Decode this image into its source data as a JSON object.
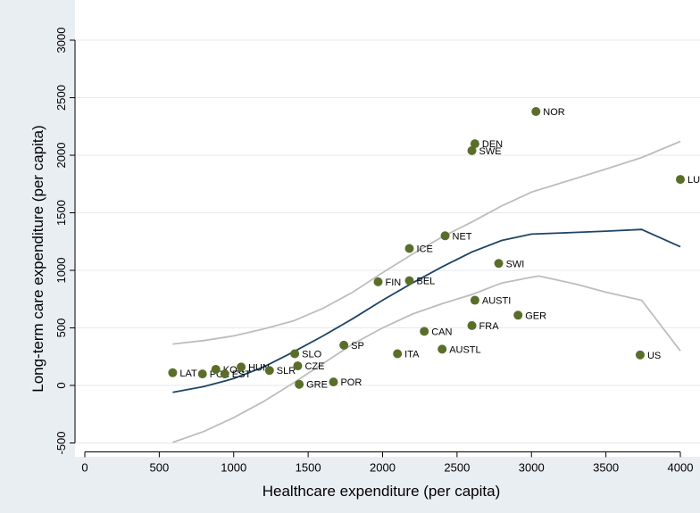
{
  "chart_data": {
    "type": "scatter",
    "title": "",
    "xlabel": "Healthcare expenditure (per capita)",
    "ylabel": "Long-term care expenditure (per capita)",
    "xlim": [
      0,
      4000
    ],
    "ylim": [
      -500,
      3000
    ],
    "xticks": [
      0,
      500,
      1000,
      1500,
      2000,
      2500,
      3000,
      3500,
      4000
    ],
    "yticks": [
      -500,
      0,
      500,
      1000,
      1500,
      2000,
      2500,
      3000
    ],
    "grid": "horizontal",
    "legend": "none",
    "colors": {
      "background": "#e9eef3",
      "plot_background": "#ffffff",
      "gridline": "#e3eaef",
      "point": "#5a6e2a",
      "fit_line": "#1e4466",
      "ci_line": "#bdbdbd"
    },
    "points": [
      {
        "label": "LAT",
        "x": 590,
        "y": 110
      },
      {
        "label": "POL",
        "x": 790,
        "y": 100
      },
      {
        "label": "KOR",
        "x": 880,
        "y": 140
      },
      {
        "label": "EST",
        "x": 940,
        "y": 100
      },
      {
        "label": "HUN",
        "x": 1050,
        "y": 160
      },
      {
        "label": "SLR",
        "x": 1240,
        "y": 130
      },
      {
        "label": "SLO",
        "x": 1410,
        "y": 275
      },
      {
        "label": "CZE",
        "x": 1430,
        "y": 170
      },
      {
        "label": "GRE",
        "x": 1440,
        "y": 10
      },
      {
        "label": "POR",
        "x": 1670,
        "y": 30
      },
      {
        "label": "SP",
        "x": 1740,
        "y": 350
      },
      {
        "label": "FIN",
        "x": 1970,
        "y": 900
      },
      {
        "label": "ITA",
        "x": 2100,
        "y": 275
      },
      {
        "label": "ICE",
        "x": 2180,
        "y": 1190
      },
      {
        "label": "BEL",
        "x": 2180,
        "y": 910
      },
      {
        "label": "CAN",
        "x": 2280,
        "y": 470
      },
      {
        "label": "AUSTL",
        "x": 2400,
        "y": 315
      },
      {
        "label": "NET",
        "x": 2420,
        "y": 1300
      },
      {
        "label": "SWE",
        "x": 2600,
        "y": 2040
      },
      {
        "label": "FRA",
        "x": 2600,
        "y": 520
      },
      {
        "label": "DEN",
        "x": 2620,
        "y": 2100
      },
      {
        "label": "AUSTI",
        "x": 2620,
        "y": 740
      },
      {
        "label": "SWI",
        "x": 2780,
        "y": 1060
      },
      {
        "label": "GER",
        "x": 2910,
        "y": 610
      },
      {
        "label": "NOR",
        "x": 3030,
        "y": 2380
      },
      {
        "label": "US",
        "x": 3730,
        "y": 265
      },
      {
        "label": "LU",
        "x": 4000,
        "y": 1790
      }
    ],
    "series": [
      {
        "role": "fit",
        "x": [
          590,
          800,
          1000,
          1200,
          1400,
          1600,
          1800,
          2000,
          2200,
          2400,
          2600,
          2800,
          3000,
          3200,
          3500,
          3740,
          4000
        ],
        "y": [
          -60,
          -10,
          60,
          160,
          290,
          430,
          580,
          740,
          890,
          1030,
          1160,
          1260,
          1315,
          1325,
          1340,
          1355,
          1205
        ]
      },
      {
        "role": "ci-upper",
        "x": [
          590,
          800,
          1000,
          1200,
          1400,
          1600,
          1800,
          2000,
          2200,
          2400,
          2600,
          2800,
          3000,
          3200,
          3500,
          3740,
          4000
        ],
        "y": [
          360,
          390,
          430,
          490,
          560,
          670,
          810,
          980,
          1140,
          1290,
          1420,
          1560,
          1680,
          1760,
          1880,
          1980,
          2120
        ]
      },
      {
        "role": "ci-lower",
        "x": [
          590,
          800,
          1000,
          1200,
          1400,
          1600,
          1800,
          2000,
          2200,
          2400,
          2600,
          2800,
          3000,
          3050,
          3300,
          3500,
          3740,
          4000
        ],
        "y": [
          -495,
          -400,
          -280,
          -140,
          20,
          190,
          360,
          500,
          620,
          710,
          790,
          890,
          940,
          950,
          880,
          810,
          740,
          300
        ]
      }
    ]
  }
}
